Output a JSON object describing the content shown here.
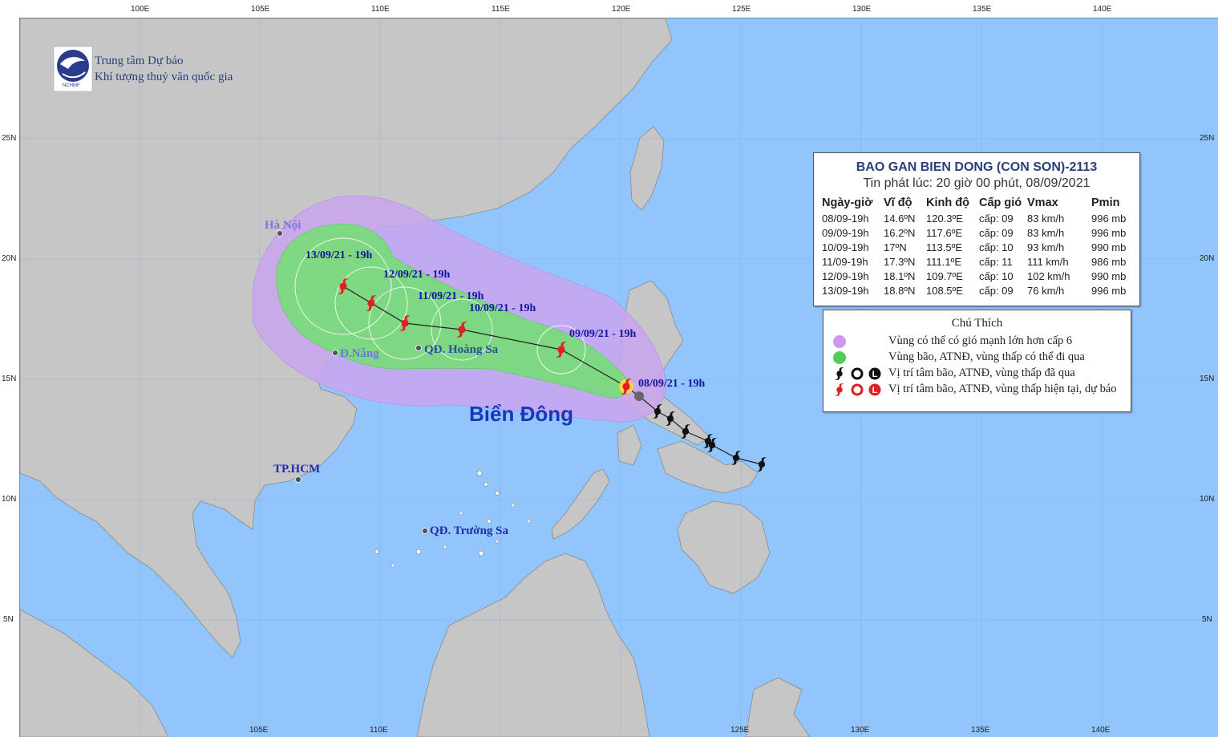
{
  "grid": {
    "top_lon_labels": [
      "100E",
      "105E",
      "110E",
      "115E",
      "120E",
      "125E",
      "130E",
      "135E",
      "140E"
    ],
    "bottom_lon_labels": [
      "105E",
      "110E",
      "125E",
      "130E",
      "135E",
      "140E"
    ],
    "lat_labels": [
      "25N",
      "20N",
      "15N",
      "10N",
      "5N"
    ]
  },
  "agency": {
    "line1": "Trung tâm Dự báo",
    "line2": "Khí tượng thuỷ văn quốc gia",
    "logo_caption": "NCHMF"
  },
  "places": {
    "hanoi": "Hà Nội",
    "danang": "Đ.Nẵng",
    "hoangsa": "QĐ. Hoàng Sa",
    "hcm": "TP.HCM",
    "truongsa": "QĐ. Trường Sa",
    "sea": "Biển Đông"
  },
  "track_labels": [
    "13/09/21 - 19h",
    "12/09/21 - 19h",
    "11/09/21 - 19h",
    "10/09/21 - 19h",
    "09/09/21 - 19h",
    "08/09/21 - 19h"
  ],
  "bulletin": {
    "title": "BAO GAN BIEN DONG (CON SON)-2113",
    "issued": "Tin phát lúc: 20 giờ 00 phút, 08/09/2021",
    "headers": [
      "Ngày-giờ",
      "Vĩ độ",
      "Kinh độ",
      "Cấp gió",
      "Vmax",
      "Pmin"
    ],
    "rows": [
      [
        "08/09-19h",
        "14.6ºN",
        "120.3ºE",
        "cấp: 09",
        "83 km/h",
        "996 mb"
      ],
      [
        "09/09-19h",
        "16.2ºN",
        "117.6ºE",
        "cấp: 09",
        "83 km/h",
        "996 mb"
      ],
      [
        "10/09-19h",
        "17ºN",
        "113.5ºE",
        "cấp: 10",
        "93 km/h",
        "990 mb"
      ],
      [
        "11/09-19h",
        "17.3ºN",
        "111.1ºE",
        "cấp: 11",
        "111 km/h",
        "986 mb"
      ],
      [
        "12/09-19h",
        "18.1ºN",
        "109.7ºE",
        "cấp: 10",
        "102 km/h",
        "990 mb"
      ],
      [
        "13/09-19h",
        "18.8ºN",
        "108.5ºE",
        "cấp: 09",
        "76 km/h",
        "996 mb"
      ]
    ]
  },
  "legend": {
    "title": "Chú Thích",
    "items": [
      {
        "text": "Vùng có thể có gió mạnh lớn hơn cấp 6",
        "symbol": "violet-circle",
        "color": "#cc99ee"
      },
      {
        "text": "Vùng bão, ATNĐ, vùng thấp có thể đi qua",
        "symbol": "green-circle",
        "color": "#55cc55"
      },
      {
        "text": "Vị trí tâm bão, ATNĐ, vùng thấp đã qua",
        "symbol": "black-storm-symbols",
        "color": "#111111"
      },
      {
        "text": "Vị trí tâm bão, ATNĐ, vùng thấp hiện tại, dự báo",
        "symbol": "red-storm-symbols",
        "color": "#e02020"
      }
    ],
    "low_letter": "L"
  },
  "colors": {
    "sea": "#92c5fc",
    "land": "#c6c6c6",
    "wind_zone": "#c9a4ee",
    "track_zone": "#77dd77",
    "forecast_symbol": "#e02020",
    "past_symbol": "#111111"
  }
}
